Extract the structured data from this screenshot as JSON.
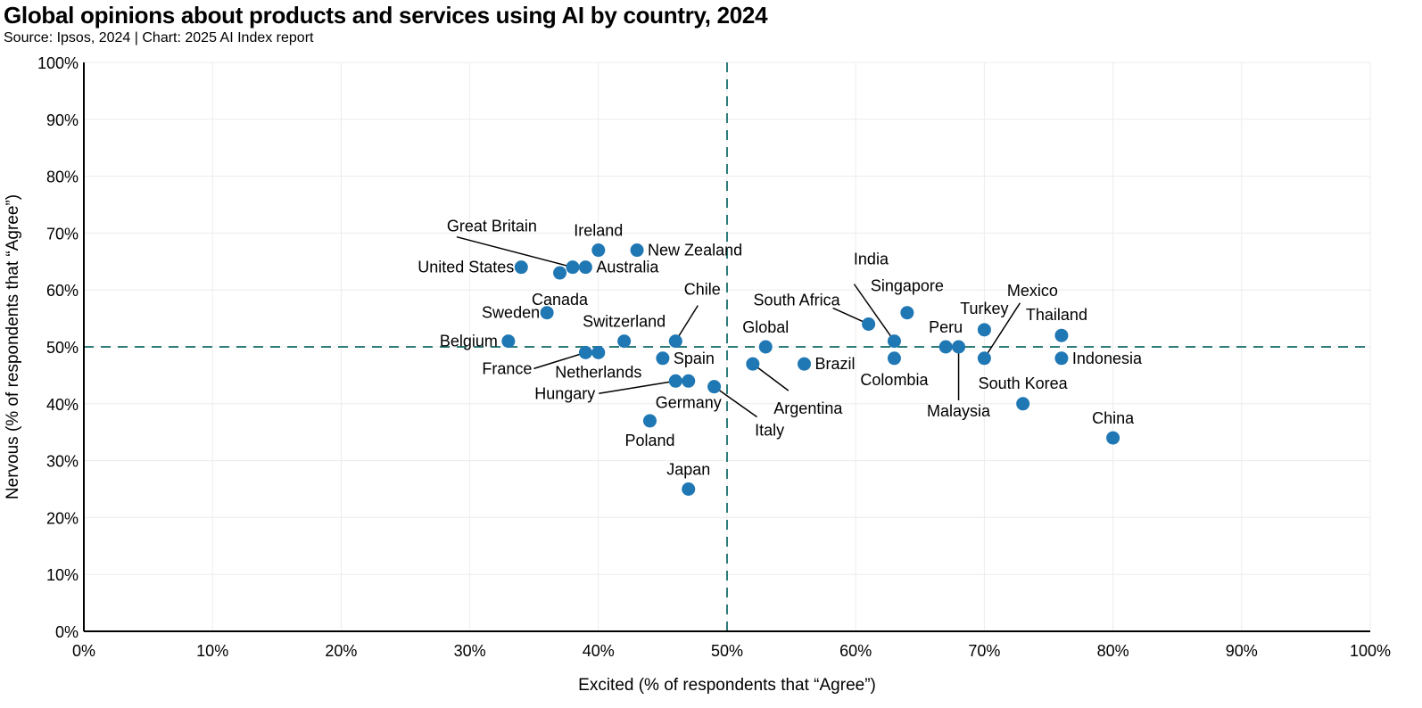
{
  "chart_data": {
    "type": "scatter",
    "title": "Global opinions about products and services using AI by country, 2024",
    "subtitle": "Source: Ipsos, 2024 | Chart: 2025 AI Index report",
    "xlabel": "Excited (% of respondents that “Agree”)",
    "ylabel": "Nervous (% of respondents that “Agree”)",
    "xlim": [
      0,
      100
    ],
    "ylim": [
      0,
      100
    ],
    "xticks": [
      "0%",
      "10%",
      "20%",
      "30%",
      "40%",
      "50%",
      "60%",
      "70%",
      "80%",
      "90%",
      "100%"
    ],
    "yticks": [
      "0%",
      "10%",
      "20%",
      "30%",
      "40%",
      "50%",
      "60%",
      "70%",
      "80%",
      "90%",
      "100%"
    ],
    "grid": true,
    "reference_lines": {
      "x": 50,
      "y": 50
    },
    "colors": {
      "point": "#1f77b4",
      "reference": "#2e7d7a"
    },
    "points": [
      {
        "name": "United States",
        "x": 34,
        "y": 64
      },
      {
        "name": "Great Britain",
        "x": 38,
        "y": 64
      },
      {
        "name": "Australia",
        "x": 39,
        "y": 64
      },
      {
        "name": "Canada",
        "x": 37,
        "y": 63
      },
      {
        "name": "Ireland",
        "x": 40,
        "y": 67
      },
      {
        "name": "New Zealand",
        "x": 43,
        "y": 67
      },
      {
        "name": "Sweden",
        "x": 36,
        "y": 56
      },
      {
        "name": "Belgium",
        "x": 33,
        "y": 51
      },
      {
        "name": "France",
        "x": 39,
        "y": 49
      },
      {
        "name": "Netherlands",
        "x": 40,
        "y": 49
      },
      {
        "name": "Switzerland",
        "x": 42,
        "y": 51
      },
      {
        "name": "Chile",
        "x": 46,
        "y": 51
      },
      {
        "name": "Spain",
        "x": 45,
        "y": 48
      },
      {
        "name": "Hungary",
        "x": 46,
        "y": 44
      },
      {
        "name": "Germany",
        "x": 47,
        "y": 44
      },
      {
        "name": "Italy",
        "x": 49,
        "y": 43
      },
      {
        "name": "Poland",
        "x": 44,
        "y": 37
      },
      {
        "name": "Japan",
        "x": 47,
        "y": 25
      },
      {
        "name": "Global",
        "x": 53,
        "y": 50
      },
      {
        "name": "Argentina",
        "x": 52,
        "y": 47
      },
      {
        "name": "Brazil",
        "x": 56,
        "y": 47
      },
      {
        "name": "South Africa",
        "x": 61,
        "y": 54
      },
      {
        "name": "India",
        "x": 63,
        "y": 51
      },
      {
        "name": "Colombia",
        "x": 63,
        "y": 48
      },
      {
        "name": "Singapore",
        "x": 64,
        "y": 56
      },
      {
        "name": "Peru",
        "x": 67,
        "y": 50
      },
      {
        "name": "Malaysia",
        "x": 68,
        "y": 50
      },
      {
        "name": "Turkey",
        "x": 70,
        "y": 53
      },
      {
        "name": "Mexico",
        "x": 70,
        "y": 48
      },
      {
        "name": "South Korea",
        "x": 73,
        "y": 40
      },
      {
        "name": "Thailand",
        "x": 76,
        "y": 52
      },
      {
        "name": "Indonesia",
        "x": 76,
        "y": 48
      },
      {
        "name": "China",
        "x": 80,
        "y": 34
      }
    ]
  }
}
